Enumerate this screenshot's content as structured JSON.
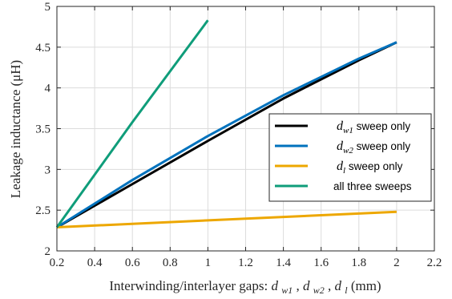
{
  "chart_data": {
    "type": "line",
    "xlabel": "Interwinding/interlayer gaps: d_w1, d_w2, d_l (mm)",
    "xlabel_parts": {
      "prefix": "Interwinding/interlayer gaps: ",
      "v1": "d",
      "v1_sub": "w1",
      "sep1": ", ",
      "v2": "d",
      "v2_sub": "w2",
      "sep2": ", ",
      "v3": "d",
      "v3_sub": "l",
      "suffix": " (mm)"
    },
    "ylabel": "Leakage inductance (μH)",
    "xlim": [
      0.2,
      2.2
    ],
    "ylim": [
      2,
      5
    ],
    "xticks": [
      0.2,
      0.4,
      0.6,
      0.8,
      1,
      1.2,
      1.4,
      1.6,
      1.8,
      2,
      2.2
    ],
    "xtick_labels": [
      "0.2",
      "0.4",
      "0.6",
      "0.8",
      "1",
      "1.2",
      "1.4",
      "1.6",
      "1.8",
      "2",
      "2.2"
    ],
    "yticks": [
      2,
      2.5,
      3,
      3.5,
      4,
      4.5,
      5
    ],
    "ytick_labels": [
      "2",
      "2.5",
      "3",
      "3.5",
      "4",
      "4.5",
      "5"
    ],
    "grid": true,
    "legend_position": "middle-right",
    "series": [
      {
        "name": "d_w1 sweep only",
        "legend": {
          "var": "d",
          "sub": "w1",
          "rest": " sweep only"
        },
        "color": "#000000",
        "x": [
          0.2,
          0.6,
          1.0,
          1.4,
          1.8,
          2.0
        ],
        "y": [
          2.29,
          2.82,
          3.35,
          3.87,
          4.34,
          4.56
        ]
      },
      {
        "name": "d_w2 sweep only",
        "legend": {
          "var": "d",
          "sub": "w2",
          "rest": " sweep only"
        },
        "color": "#0072BD",
        "x": [
          0.2,
          0.6,
          1.0,
          1.4,
          1.8,
          2.0
        ],
        "y": [
          2.29,
          2.87,
          3.41,
          3.91,
          4.36,
          4.56
        ]
      },
      {
        "name": "d_l sweep only",
        "legend": {
          "var": "d",
          "sub": "l",
          "rest": " sweep only"
        },
        "color": "#EDA700",
        "x": [
          0.2,
          2.0
        ],
        "y": [
          2.29,
          2.48
        ]
      },
      {
        "name": "all three sweeps",
        "legend": {
          "var": "",
          "sub": "",
          "rest": "all three sweeps"
        },
        "color": "#0F9D7A",
        "x": [
          0.2,
          0.6,
          1.0
        ],
        "y": [
          2.29,
          3.58,
          4.83
        ]
      }
    ]
  }
}
